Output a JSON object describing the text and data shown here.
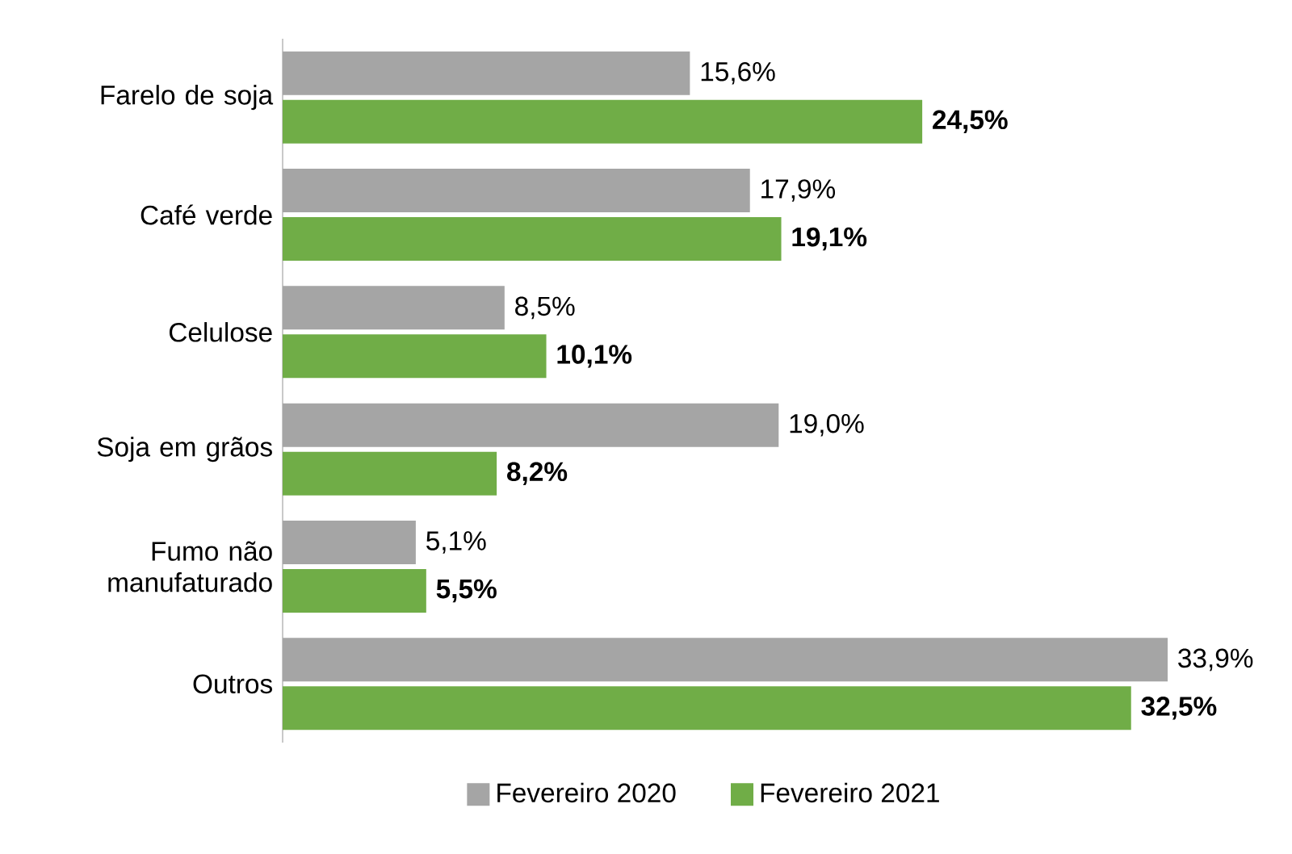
{
  "chart_data": {
    "type": "bar",
    "orientation": "horizontal",
    "categories": [
      "Farelo de soja",
      "Café verde",
      "Celulose",
      "Soja em grãos",
      "Fumo não manufaturado",
      "Outros"
    ],
    "series": [
      {
        "name": "Fevereiro 2020",
        "color": "#a5a5a5",
        "values": [
          15.6,
          17.9,
          8.5,
          19.0,
          5.1,
          33.9
        ],
        "value_labels": [
          "15,6%",
          "17,9%",
          "8,5%",
          "19,0%",
          "5,1%",
          "33,9%"
        ]
      },
      {
        "name": "Fevereiro 2021",
        "color": "#70ad47",
        "values": [
          24.5,
          19.1,
          10.1,
          8.2,
          5.5,
          32.5
        ],
        "value_labels": [
          "**24,5%**",
          "**19,1%**",
          "**10,1%**",
          "**8,2%**",
          "**5,5%**",
          "**32,5%**"
        ]
      }
    ],
    "legend": "bottom"
  }
}
